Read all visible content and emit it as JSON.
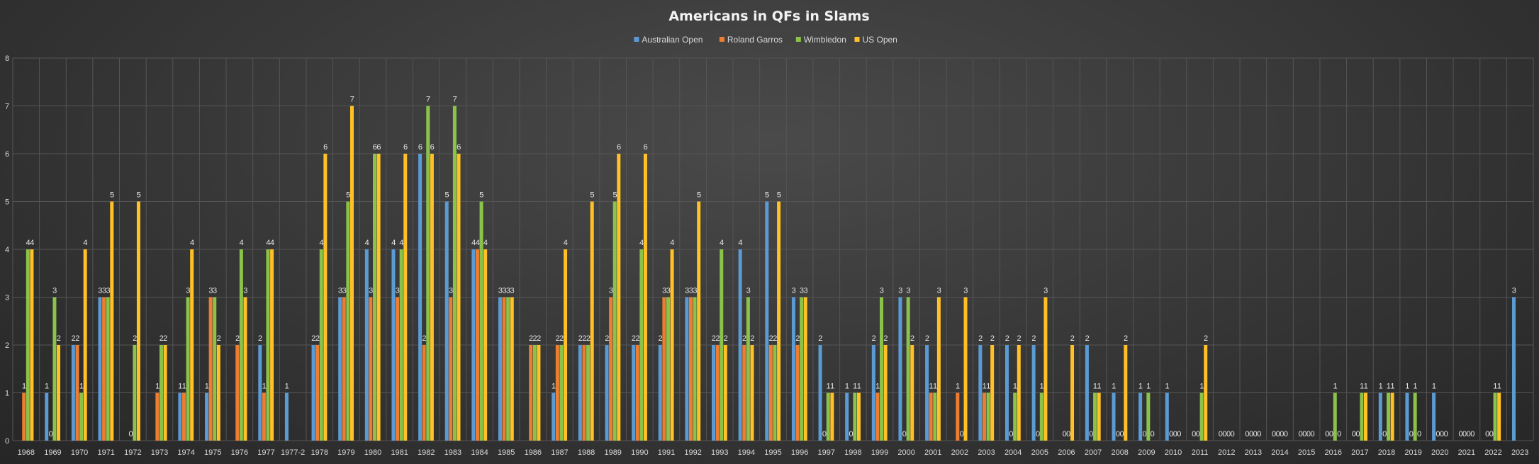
{
  "chart_data": {
    "type": "bar",
    "title": "Americans  in  QFs  in  Slams",
    "ylim": [
      0,
      8
    ],
    "yticks": [
      0,
      1,
      2,
      3,
      4,
      5,
      6,
      7,
      8
    ],
    "grid": true,
    "legend_position": "top",
    "categories": [
      "1968",
      "1969",
      "1970",
      "1971",
      "1972",
      "1973",
      "1974",
      "1975",
      "1976",
      "1977",
      "1977-2",
      "1978",
      "1979",
      "1980",
      "1981",
      "1982",
      "1983",
      "1984",
      "1985",
      "1986",
      "1987",
      "1988",
      "1989",
      "1990",
      "1991",
      "1992",
      "1993",
      "1994",
      "1995",
      "1996",
      "1997",
      "1998",
      "1999",
      "2000",
      "2001",
      "2002",
      "2003",
      "2004",
      "2005",
      "2006",
      "2007",
      "2008",
      "2009",
      "2010",
      "2011",
      "2012",
      "2013",
      "2014",
      "2015",
      "2016",
      "2017",
      "2018",
      "2019",
      "2020",
      "2021",
      "2022",
      "2023"
    ],
    "series": [
      {
        "name": "Australian Open",
        "color": "#5b9bd5",
        "values": [
          null,
          1,
          2,
          3,
          null,
          null,
          1,
          1,
          null,
          2,
          1,
          2,
          3,
          4,
          4,
          6,
          5,
          4,
          3,
          null,
          1,
          2,
          2,
          2,
          2,
          3,
          2,
          4,
          5,
          3,
          2,
          1,
          2,
          3,
          2,
          null,
          2,
          2,
          2,
          null,
          2,
          1,
          1,
          1,
          0,
          0,
          0,
          0,
          0,
          0,
          0,
          1,
          1,
          1,
          0,
          0,
          3
        ]
      },
      {
        "name": "Roland Garros",
        "color": "#ed7d31",
        "values": [
          1,
          0,
          2,
          3,
          0,
          1,
          1,
          3,
          2,
          1,
          null,
          2,
          3,
          3,
          3,
          2,
          3,
          4,
          3,
          2,
          2,
          2,
          3,
          2,
          3,
          3,
          2,
          2,
          2,
          2,
          0,
          0,
          1,
          0,
          1,
          1,
          1,
          0,
          0,
          0,
          0,
          0,
          0,
          0,
          0,
          0,
          0,
          0,
          0,
          0,
          0,
          0,
          0,
          0,
          0,
          0,
          null
        ]
      },
      {
        "name": "Wimbledon",
        "color": "#8bc34a",
        "values": [
          4,
          3,
          1,
          3,
          2,
          2,
          3,
          3,
          4,
          4,
          null,
          4,
          5,
          6,
          4,
          7,
          7,
          5,
          3,
          2,
          2,
          2,
          5,
          4,
          3,
          3,
          4,
          3,
          2,
          3,
          1,
          1,
          3,
          3,
          1,
          0,
          1,
          1,
          1,
          0,
          1,
          0,
          1,
          0,
          1,
          0,
          0,
          0,
          0,
          1,
          1,
          1,
          1,
          0,
          0,
          1,
          null
        ]
      },
      {
        "name": "US Open",
        "color": "#ffc125",
        "values": [
          4,
          2,
          4,
          5,
          5,
          2,
          4,
          2,
          3,
          4,
          null,
          6,
          7,
          6,
          6,
          6,
          6,
          4,
          3,
          2,
          4,
          5,
          6,
          6,
          4,
          5,
          2,
          2,
          5,
          3,
          1,
          1,
          2,
          2,
          3,
          3,
          2,
          2,
          3,
          2,
          1,
          2,
          0,
          0,
          2,
          0,
          0,
          0,
          0,
          0,
          1,
          1,
          0,
          0,
          0,
          1,
          null
        ]
      }
    ]
  }
}
